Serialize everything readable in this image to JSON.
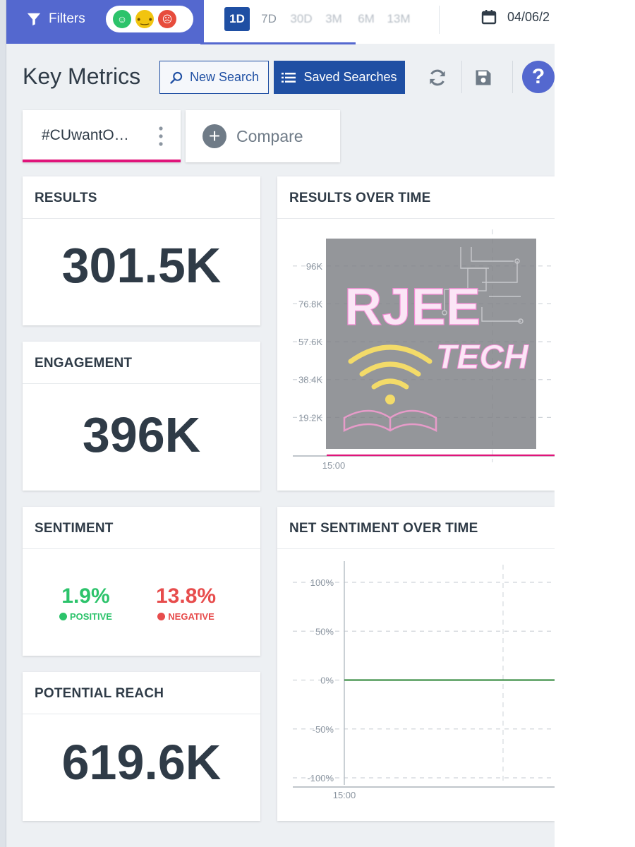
{
  "topbar": {
    "filters_label": "Filters",
    "sentiment_filters": [
      {
        "icon": "positive-face-icon"
      },
      {
        "icon": "neutral-face-icon"
      },
      {
        "icon": "negative-face-icon"
      }
    ],
    "ranges": [
      {
        "label": "1D",
        "active": true
      },
      {
        "label": "7D",
        "active": false
      },
      {
        "label": "30D",
        "active": false
      },
      {
        "label": "3M",
        "active": false
      },
      {
        "label": "6M",
        "active": false
      },
      {
        "label": "13M",
        "active": false
      }
    ],
    "date_text": "04/06/2"
  },
  "header": {
    "title": "Key Metrics",
    "new_search_label": "New Search",
    "saved_searches_label": "Saved Searches"
  },
  "query_tabs": {
    "active_label": "#CUwantO…",
    "compare_label": "Compare"
  },
  "cards": {
    "results": {
      "title": "RESULTS",
      "value": "301.5K"
    },
    "engagement": {
      "title": "ENGAGEMENT",
      "value": "396K"
    },
    "sentiment": {
      "title": "SENTIMENT",
      "positive_value": "1.9%",
      "positive_label": "POSITIVE",
      "negative_value": "13.8%",
      "negative_label": "NEGATIVE"
    },
    "potential_reach": {
      "title": "POTENTIAL REACH",
      "value": "619.6K"
    },
    "results_over_time": {
      "title": "RESULTS OVER TIME"
    },
    "net_sentiment_over_time": {
      "title": "NET SENTIMENT OVER TIME"
    }
  },
  "watermark": {
    "line1": "RJEE",
    "line2": "TECH"
  },
  "colors": {
    "topbar_accent": "#5468cf",
    "primary": "#1f4fa3",
    "tab_underline": "#e0147a",
    "positive": "#2cc36b",
    "negative": "#e74c4c",
    "net_sentiment_line": "#3e8f47"
  },
  "chart_data": [
    {
      "type": "line",
      "title": "RESULTS OVER TIME",
      "y_ticks": [
        "96K",
        "76.8K",
        "57.6K",
        "38.4K",
        "19.2K"
      ],
      "y_tick_values": [
        96000,
        76800,
        57600,
        38400,
        19200
      ],
      "x_ticks": [
        "15:00"
      ],
      "ylim": [
        0,
        105600
      ],
      "series": [
        {
          "color": "#e0147a",
          "points": [
            {
              "x": "15:00",
              "y": 0
            }
          ]
        }
      ]
    },
    {
      "type": "line",
      "title": "NET SENTIMENT OVER TIME",
      "y_ticks": [
        "100%",
        "50%",
        "0%",
        "-50%",
        "-100%"
      ],
      "y_tick_values": [
        100,
        50,
        0,
        -50,
        -100
      ],
      "x_ticks": [
        "15:00"
      ],
      "ylim": [
        -100,
        100
      ],
      "series": [
        {
          "color": "#3e8f47",
          "points": [
            {
              "x": "15:00",
              "y": 0
            }
          ]
        }
      ]
    }
  ]
}
